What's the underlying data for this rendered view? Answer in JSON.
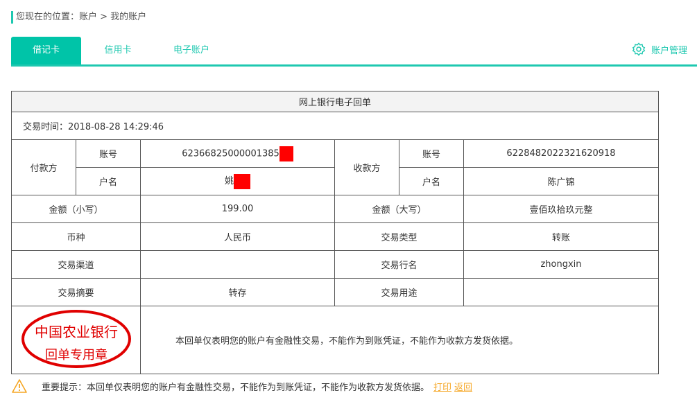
{
  "breadcrumb": "您现在的位置：账户 > 我的账户",
  "tabs": [
    "借记卡",
    "信用卡",
    "电子账户"
  ],
  "account_mgmt": "账户管理",
  "receipt": {
    "title": "网上银行电子回单",
    "time_label": "交易时间：2018-08-28 14:29:46",
    "payer_label": "付款方",
    "payee_label": "收款方",
    "acct_label": "账号",
    "name_label": "户名",
    "payer_acct": "62366825000001385",
    "payer_name": "姚",
    "payee_acct": "6228482022321620918",
    "payee_name": "陈广锦",
    "amt_small_label": "金额（小写）",
    "amt_small": "199.00",
    "amt_big_label": "金额（大写）",
    "amt_big": "壹佰玖拾玖元整",
    "currency_label": "币种",
    "currency": "人民币",
    "type_label": "交易类型",
    "type": "转账",
    "channel_label": "交易渠道",
    "channel": "",
    "bank_label": "交易行名",
    "bank": "zhongxin",
    "summary_label": "交易摘要",
    "summary": "转存",
    "purpose_label": "交易用途",
    "purpose": "",
    "stamp_top": "中国农业银行",
    "stamp_bottom": "回单专用章",
    "notice": "本回单仅表明您的账户有金融性交易，不能作为到账凭证，不能作为收款方发货依据。"
  },
  "footer": {
    "notice": "重要提示：本回单仅表明您的账户有金融性交易，不能作为到账凭证，不能作为收款方发货依据。",
    "print": "打印",
    "back": "返回"
  },
  "colors": {
    "accent": "#00c4a8",
    "link": "#f5a623",
    "stamp": "#e00000"
  }
}
